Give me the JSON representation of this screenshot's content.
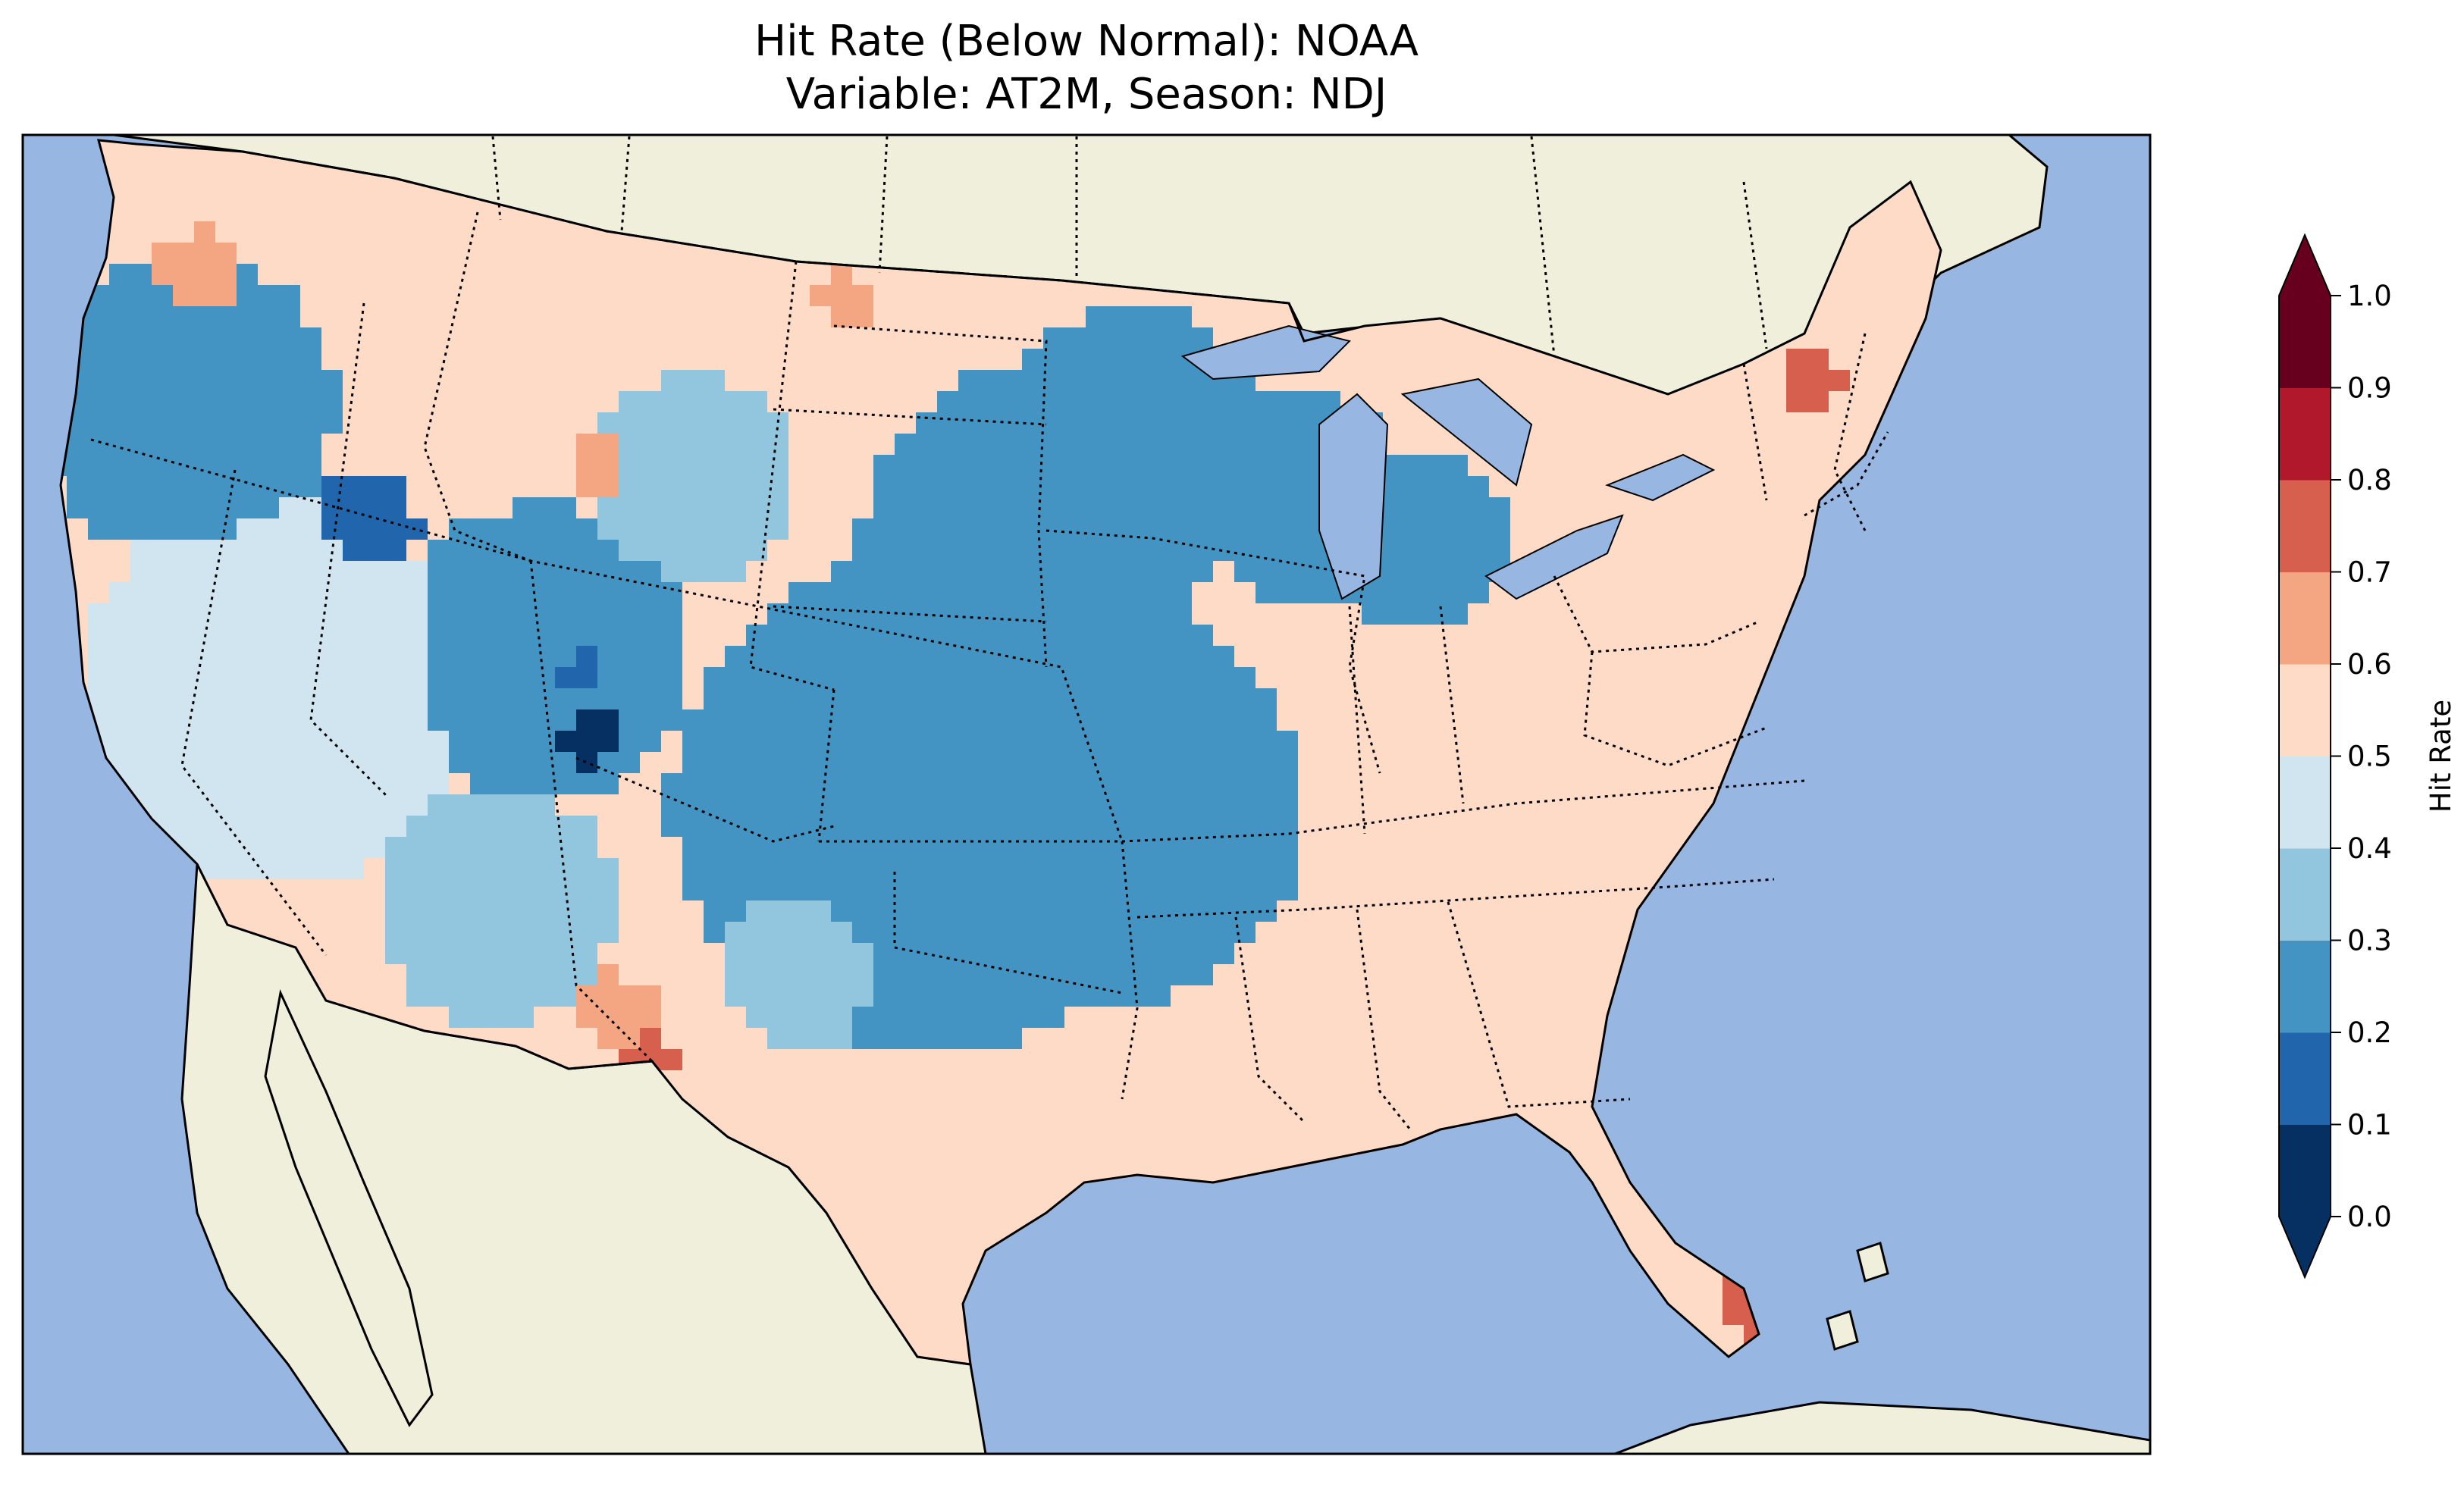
{
  "title": {
    "line1": "Hit Rate (Below Normal): NOAA",
    "line2": "Variable: AT2M, Season: NDJ"
  },
  "colors": {
    "ocean": "#97b6e1",
    "land": "#efefdb",
    "coast": "#000000"
  },
  "colorbar": {
    "label": "Hit Rate",
    "extend": "both",
    "ticks": [
      "0.0",
      "0.1",
      "0.2",
      "0.3",
      "0.4",
      "0.5",
      "0.6",
      "0.7",
      "0.8",
      "0.9",
      "1.0"
    ],
    "colors": [
      "#053061",
      "#2166ac",
      "#4393c3",
      "#92c5de",
      "#d1e5f0",
      "#fddbc7",
      "#f4a582",
      "#d6604d",
      "#b2182b",
      "#67001f"
    ],
    "under_color": "#053061",
    "over_color": "#67001f"
  },
  "map_data": {
    "type": "gridded hit-rate map",
    "region": "Contiguous United States",
    "value_range": [
      0.0,
      1.0
    ]
  }
}
